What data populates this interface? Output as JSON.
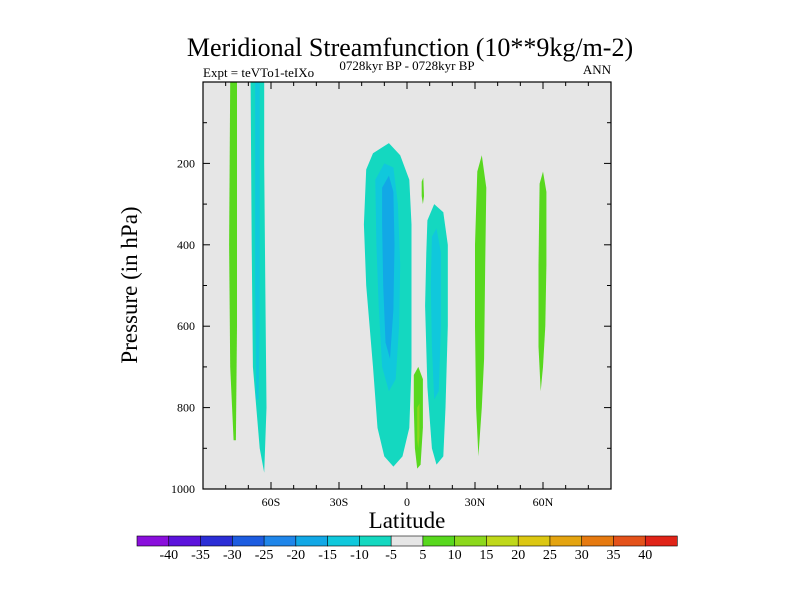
{
  "chart_data": {
    "type": "contour",
    "title": "Meridional Streamfunction (10**9kg/m-2)",
    "subtitle_left": "Expt = teVTo1-teIXo",
    "subtitle_center": "0728kyr BP - 0728kyr BP",
    "subtitle_right": "ANN",
    "xlabel": "Latitude",
    "ylabel": "Pressure (in hPa)",
    "xlim": [
      -90,
      90
    ],
    "ylim": [
      1000,
      0
    ],
    "x_ticks": [
      {
        "value": -60,
        "label": "60S"
      },
      {
        "value": -30,
        "label": "30S"
      },
      {
        "value": 0,
        "label": "0"
      },
      {
        "value": 30,
        "label": "30N"
      },
      {
        "value": 60,
        "label": "60N"
      }
    ],
    "y_ticks": [
      {
        "value": 200,
        "label": "200"
      },
      {
        "value": 400,
        "label": "400"
      },
      {
        "value": 600,
        "label": "600"
      },
      {
        "value": 800,
        "label": "800"
      },
      {
        "value": 1000,
        "label": "1000"
      }
    ],
    "background_color": "#e6e6e6",
    "colorbar": {
      "levels": [
        "-40",
        "-35",
        "-30",
        "-25",
        "-20",
        "-15",
        "-10",
        "-5",
        "5",
        "10",
        "15",
        "20",
        "25",
        "30",
        "35",
        "40"
      ],
      "colors": [
        "#8a0fdc",
        "#5c13dc",
        "#2b2ed6",
        "#1d5ce0",
        "#1f86ea",
        "#12a8e6",
        "#10c8dc",
        "#14d8c0",
        "#e6e6e6",
        "#58d81e",
        "#8cd81c",
        "#bfd81a",
        "#dcc712",
        "#e4a410",
        "#e67a10",
        "#e4521a",
        "#e02418"
      ]
    },
    "regions": [
      {
        "name": "60S-green-cell",
        "level_color": "#58d81e",
        "points": [
          [
            -78,
            0
          ],
          [
            -75,
            0
          ],
          [
            -75,
            300
          ],
          [
            -75,
            600
          ],
          [
            -75.5,
            880
          ],
          [
            -76.5,
            880
          ],
          [
            -78,
            700
          ],
          [
            -78.5,
            400
          ],
          [
            -78,
            0
          ]
        ]
      },
      {
        "name": "60S-cyan-cell",
        "level_color": "#14d8c0",
        "points": [
          [
            -69,
            0
          ],
          [
            -63,
            0
          ],
          [
            -63,
            200
          ],
          [
            -62.5,
            500
          ],
          [
            -62,
            800
          ],
          [
            -63,
            960
          ],
          [
            -65,
            900
          ],
          [
            -68,
            700
          ],
          [
            -68.5,
            400
          ],
          [
            -69,
            0
          ]
        ]
      },
      {
        "name": "60S-blue-core",
        "level_color": "#10c8dc",
        "points": [
          [
            -67,
            0
          ],
          [
            -65,
            0
          ],
          [
            -65,
            300
          ],
          [
            -65,
            600
          ],
          [
            -65.5,
            780
          ],
          [
            -66.5,
            780
          ],
          [
            -67,
            500
          ],
          [
            -67,
            0
          ]
        ]
      },
      {
        "name": "equator-left-cell",
        "level_color": "#14d8c0",
        "points": [
          [
            -18,
            215
          ],
          [
            -15,
            175
          ],
          [
            -8,
            150
          ],
          [
            -3,
            180
          ],
          [
            1,
            240
          ],
          [
            2,
            350
          ],
          [
            2,
            500
          ],
          [
            2,
            700
          ],
          [
            1,
            850
          ],
          [
            -2,
            920
          ],
          [
            -6,
            945
          ],
          [
            -10,
            920
          ],
          [
            -13,
            850
          ],
          [
            -15,
            700
          ],
          [
            -18,
            500
          ],
          [
            -19,
            350
          ],
          [
            -18,
            215
          ]
        ]
      },
      {
        "name": "equator-left-mid",
        "level_color": "#10c8dc",
        "points": [
          [
            -14,
            240
          ],
          [
            -10,
            200
          ],
          [
            -6,
            210
          ],
          [
            -4,
            300
          ],
          [
            -3,
            450
          ],
          [
            -3.5,
            600
          ],
          [
            -5,
            730
          ],
          [
            -8,
            760
          ],
          [
            -11,
            700
          ],
          [
            -12.5,
            550
          ],
          [
            -13.5,
            400
          ],
          [
            -14,
            240
          ]
        ]
      },
      {
        "name": "equator-left-core",
        "level_color": "#12a8e6",
        "points": [
          [
            -11,
            260
          ],
          [
            -8,
            230
          ],
          [
            -6,
            270
          ],
          [
            -5.5,
            400
          ],
          [
            -6,
            560
          ],
          [
            -7.5,
            680
          ],
          [
            -9.5,
            640
          ],
          [
            -10.5,
            500
          ],
          [
            -11,
            350
          ],
          [
            -11,
            260
          ]
        ]
      },
      {
        "name": "equator-right-cell",
        "level_color": "#14d8c0",
        "points": [
          [
            9,
            340
          ],
          [
            12,
            300
          ],
          [
            16,
            320
          ],
          [
            18,
            400
          ],
          [
            18,
            600
          ],
          [
            17,
            800
          ],
          [
            16,
            920
          ],
          [
            13,
            940
          ],
          [
            11,
            900
          ],
          [
            9,
            750
          ],
          [
            8,
            550
          ],
          [
            8.5,
            420
          ],
          [
            9,
            340
          ]
        ]
      },
      {
        "name": "equator-right-core",
        "level_color": "#10c8dc",
        "points": [
          [
            11,
            380
          ],
          [
            13,
            360
          ],
          [
            15,
            420
          ],
          [
            15,
            600
          ],
          [
            14,
            760
          ],
          [
            12,
            780
          ],
          [
            11,
            650
          ],
          [
            10.5,
            500
          ],
          [
            11,
            380
          ]
        ]
      },
      {
        "name": "equator-green-cell",
        "level_color": "#58d81e",
        "points": [
          [
            3,
            720
          ],
          [
            5,
            700
          ],
          [
            7,
            730
          ],
          [
            7,
            850
          ],
          [
            6,
            940
          ],
          [
            4.5,
            950
          ],
          [
            3.5,
            900
          ],
          [
            3,
            800
          ],
          [
            3,
            720
          ]
        ]
      },
      {
        "name": "equator-yellow-core",
        "level_color": "#8cd81c",
        "points": [
          [
            4.5,
            800
          ],
          [
            5.5,
            790
          ],
          [
            5.5,
            870
          ],
          [
            5,
            900
          ],
          [
            4.5,
            880
          ],
          [
            4.5,
            800
          ]
        ]
      },
      {
        "name": "equator-small-green",
        "level_color": "#58d81e",
        "points": [
          [
            6.5,
            245
          ],
          [
            7.2,
            235
          ],
          [
            7.5,
            280
          ],
          [
            7,
            300
          ],
          [
            6.5,
            280
          ],
          [
            6.5,
            245
          ]
        ]
      },
      {
        "name": "30N-green-cell",
        "level_color": "#58d81e",
        "points": [
          [
            31,
            220
          ],
          [
            33,
            180
          ],
          [
            35,
            260
          ],
          [
            34.5,
            450
          ],
          [
            34,
            680
          ],
          [
            33,
            800
          ],
          [
            31.5,
            920
          ],
          [
            30.5,
            800
          ],
          [
            30,
            600
          ],
          [
            30,
            400
          ],
          [
            31,
            220
          ]
        ]
      },
      {
        "name": "60N-green-cell",
        "level_color": "#58d81e",
        "points": [
          [
            58.5,
            250
          ],
          [
            60,
            220
          ],
          [
            61.5,
            270
          ],
          [
            61.5,
            450
          ],
          [
            61,
            600
          ],
          [
            60,
            700
          ],
          [
            59,
            760
          ],
          [
            58,
            650
          ],
          [
            58,
            450
          ],
          [
            58.5,
            250
          ]
        ]
      }
    ]
  }
}
